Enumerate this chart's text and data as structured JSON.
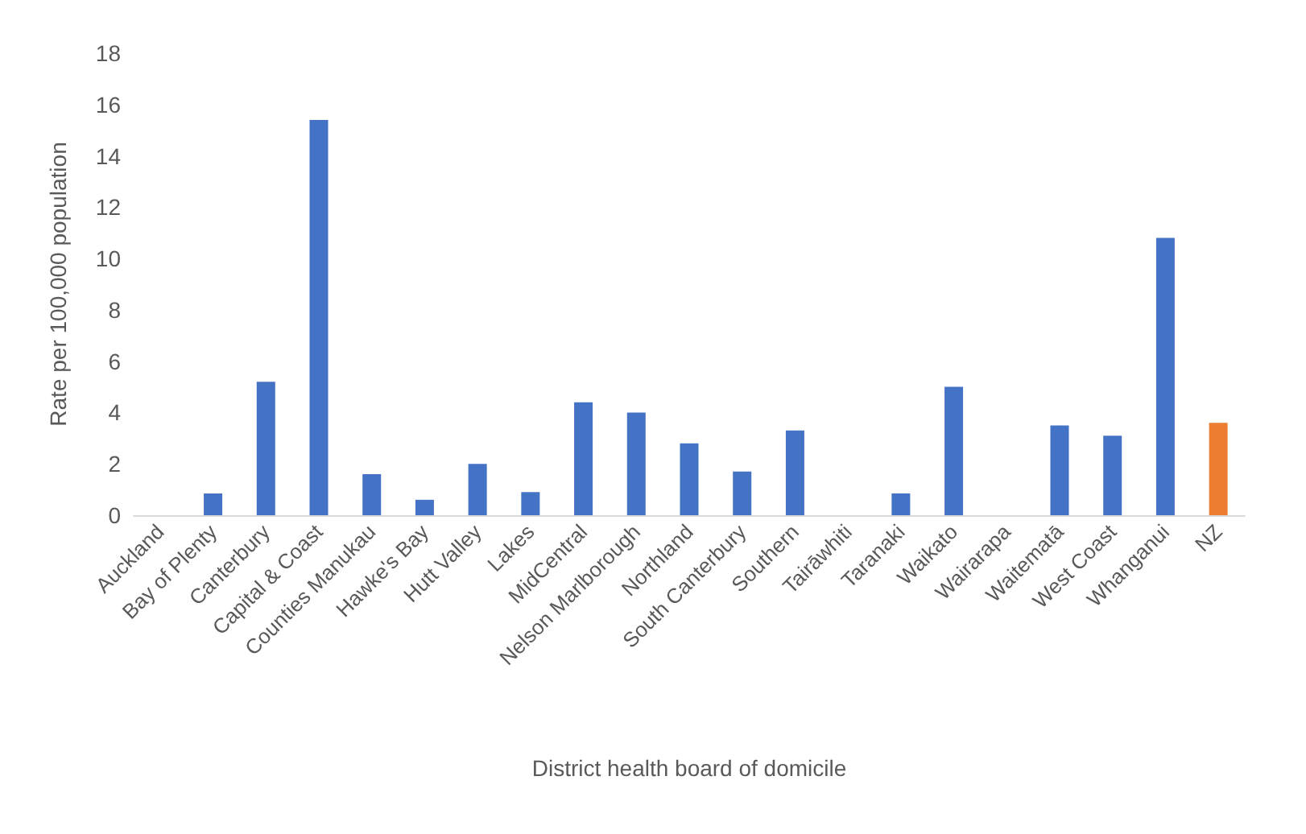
{
  "chart_data": {
    "type": "bar",
    "xlabel": "District health board of domicile",
    "ylabel": "Rate per 100,000 population",
    "categories": [
      "Auckland",
      "Bay of Plenty",
      "Canterbury",
      "Capital & Coast",
      "Counties Manukau",
      "Hawke's Bay",
      "Hutt Valley",
      "Lakes",
      "MidCentral",
      "Nelson Marlborough",
      "Northland",
      "South Canterbury",
      "Southern",
      "Tairāwhiti",
      "Taranaki",
      "Waikato",
      "Wairarapa",
      "Waitematā",
      "West Coast",
      "Whanganui",
      "NZ"
    ],
    "values": [
      0,
      0.85,
      5.2,
      15.4,
      1.6,
      0.6,
      2.0,
      0.9,
      4.4,
      4.0,
      2.8,
      1.7,
      3.3,
      0,
      0.85,
      5.0,
      0,
      3.5,
      3.1,
      10.8,
      3.6
    ],
    "colors": [
      "#4472c4",
      "#4472c4",
      "#4472c4",
      "#4472c4",
      "#4472c4",
      "#4472c4",
      "#4472c4",
      "#4472c4",
      "#4472c4",
      "#4472c4",
      "#4472c4",
      "#4472c4",
      "#4472c4",
      "#4472c4",
      "#4472c4",
      "#4472c4",
      "#4472c4",
      "#4472c4",
      "#4472c4",
      "#4472c4",
      "#ed7d31"
    ],
    "ylim": [
      0,
      18
    ],
    "yticks": [
      0,
      2,
      4,
      6,
      8,
      10,
      12,
      14,
      16,
      18
    ],
    "grid": false
  }
}
